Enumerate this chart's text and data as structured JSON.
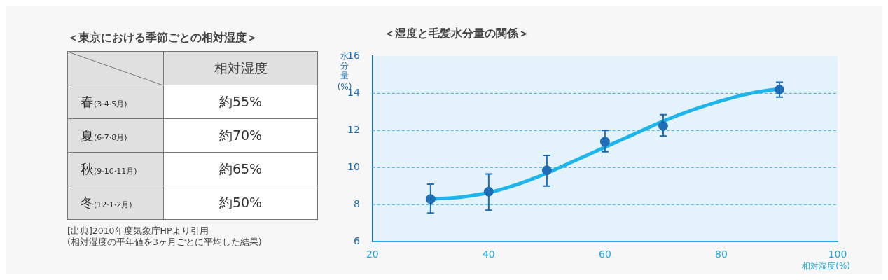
{
  "chart_data": [
    {
      "type": "other",
      "title": "＜東京における季節ごとの相対湿度＞",
      "ylabel": "相対湿度",
      "categories": [
        "春(3·4·5月)",
        "夏(6·7·8月)",
        "秋(9·10·11月)",
        "冬(12·1·2月)"
      ],
      "value_labels": [
        "約55%",
        "約70%",
        "約65%",
        "約50%"
      ],
      "annotations": [
        "[出典]2010年度気象庁HPより引用",
        "(相対湿度の平年値を3ヶ月ごとに平均した結果)"
      ]
    },
    {
      "type": "scatter",
      "title": "＜湿度と毛髪水分量の関係＞",
      "xlabel": "相対湿度(%)",
      "ylabel": "水分量(%)",
      "xlim": [
        20,
        100
      ],
      "xticks": [
        20,
        40,
        60,
        80,
        100
      ],
      "ylim": [
        6,
        16
      ],
      "yticks": [
        6,
        8,
        10,
        12,
        14,
        16
      ],
      "grid": "y",
      "series": [
        {
          "type": "scatter",
          "color": "#1f6db5",
          "marker": "circle",
          "x": [
            30,
            40,
            50,
            60,
            70,
            90
          ],
          "values": [
            8.3,
            8.7,
            9.85,
            11.4,
            12.25,
            14.2
          ],
          "errors": [
            [
              7.55,
              9.1
            ],
            [
              7.7,
              9.65
            ],
            [
              9.0,
              10.65
            ],
            [
              10.85,
              12.0
            ],
            [
              11.7,
              12.85
            ],
            [
              13.8,
              14.6
            ]
          ]
        },
        {
          "type": "line",
          "color": "#1fb5ea",
          "marker": "none",
          "x": [
            30,
            35,
            40,
            45,
            50,
            55,
            60,
            65,
            70,
            75,
            80,
            85,
            90
          ],
          "values": [
            8.3,
            8.4,
            8.65,
            9.1,
            9.7,
            10.4,
            11.1,
            11.8,
            12.5,
            13.1,
            13.6,
            14.0,
            14.25
          ]
        }
      ]
    }
  ]
}
